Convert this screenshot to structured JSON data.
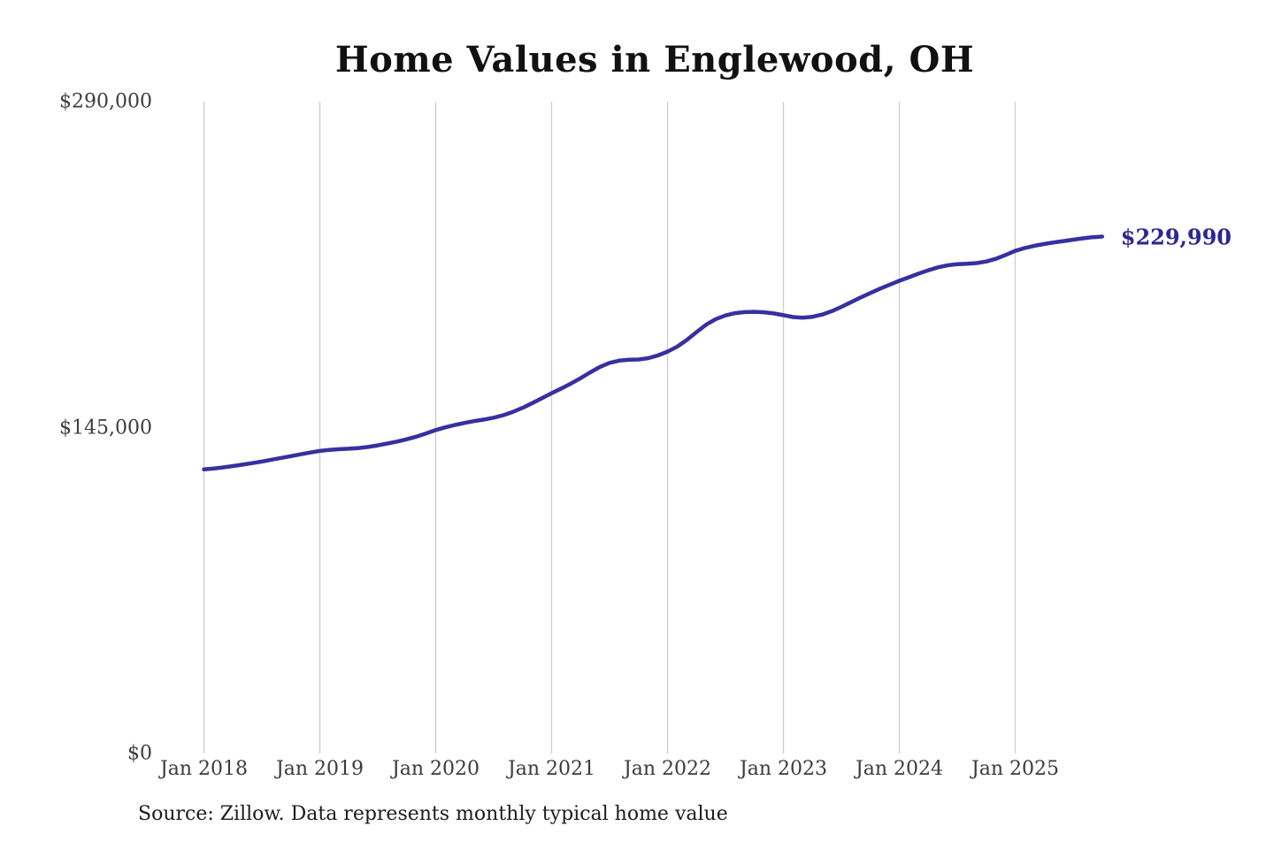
{
  "chart": {
    "title": "Home Values in Englewood, OH",
    "source": "Source: Zillow. Data represents monthly typical home value",
    "end_label": "$229,990",
    "colors": {
      "line": "#37309f",
      "end_label": "#2b2794",
      "grid": "#cccccc",
      "title_text": "#111111",
      "axis_text": "#3d3d3d",
      "source_text": "#1c1c1c",
      "background": "#ffffff"
    }
  },
  "chart_data": {
    "type": "line",
    "title": "Home Values in Englewood, OH",
    "xlabel": "",
    "ylabel": "",
    "ylim": [
      0,
      290000
    ],
    "grid": "vertical-only",
    "legend": "none",
    "y_ticks": [
      {
        "label": "$0",
        "value": 0
      },
      {
        "label": "$145,000",
        "value": 145000
      },
      {
        "label": "$290,000",
        "value": 290000
      }
    ],
    "x_ticks": [
      {
        "label": "Jan 2018",
        "month_index": 0
      },
      {
        "label": "Jan 2019",
        "month_index": 12
      },
      {
        "label": "Jan 2020",
        "month_index": 24
      },
      {
        "label": "Jan 2021",
        "month_index": 36
      },
      {
        "label": "Jan 2022",
        "month_index": 48
      },
      {
        "label": "Jan 2023",
        "month_index": 60
      },
      {
        "label": "Jan 2024",
        "month_index": 72
      },
      {
        "label": "Jan 2025",
        "month_index": 84
      }
    ],
    "series": [
      {
        "name": "Typical home value",
        "start_month": "2018-01",
        "end_month": "2025-10",
        "final_value": 229990,
        "values": [
          126400,
          126800,
          127300,
          127900,
          128500,
          129200,
          129900,
          130700,
          131500,
          132300,
          133100,
          133900,
          134600,
          135100,
          135400,
          135600,
          135900,
          136400,
          137100,
          137900,
          138800,
          139800,
          141000,
          142400,
          143900,
          145100,
          146200,
          147100,
          147900,
          148600,
          149400,
          150500,
          152000,
          153800,
          155900,
          158100,
          160300,
          162400,
          164600,
          167000,
          169600,
          172000,
          173800,
          174800,
          175200,
          175300,
          175900,
          177100,
          178800,
          181000,
          184000,
          187500,
          190800,
          193300,
          194900,
          195900,
          196400,
          196500,
          196300,
          195800,
          195000,
          194200,
          193900,
          194300,
          195300,
          196800,
          198700,
          200800,
          202900,
          204900,
          206800,
          208600,
          210300,
          211900,
          213500,
          215000,
          216300,
          217200,
          217700,
          217900,
          218200,
          218900,
          220100,
          221800,
          223600,
          224900,
          225900,
          226700,
          227400,
          228000,
          228600,
          229200,
          229700,
          229990
        ]
      }
    ]
  }
}
